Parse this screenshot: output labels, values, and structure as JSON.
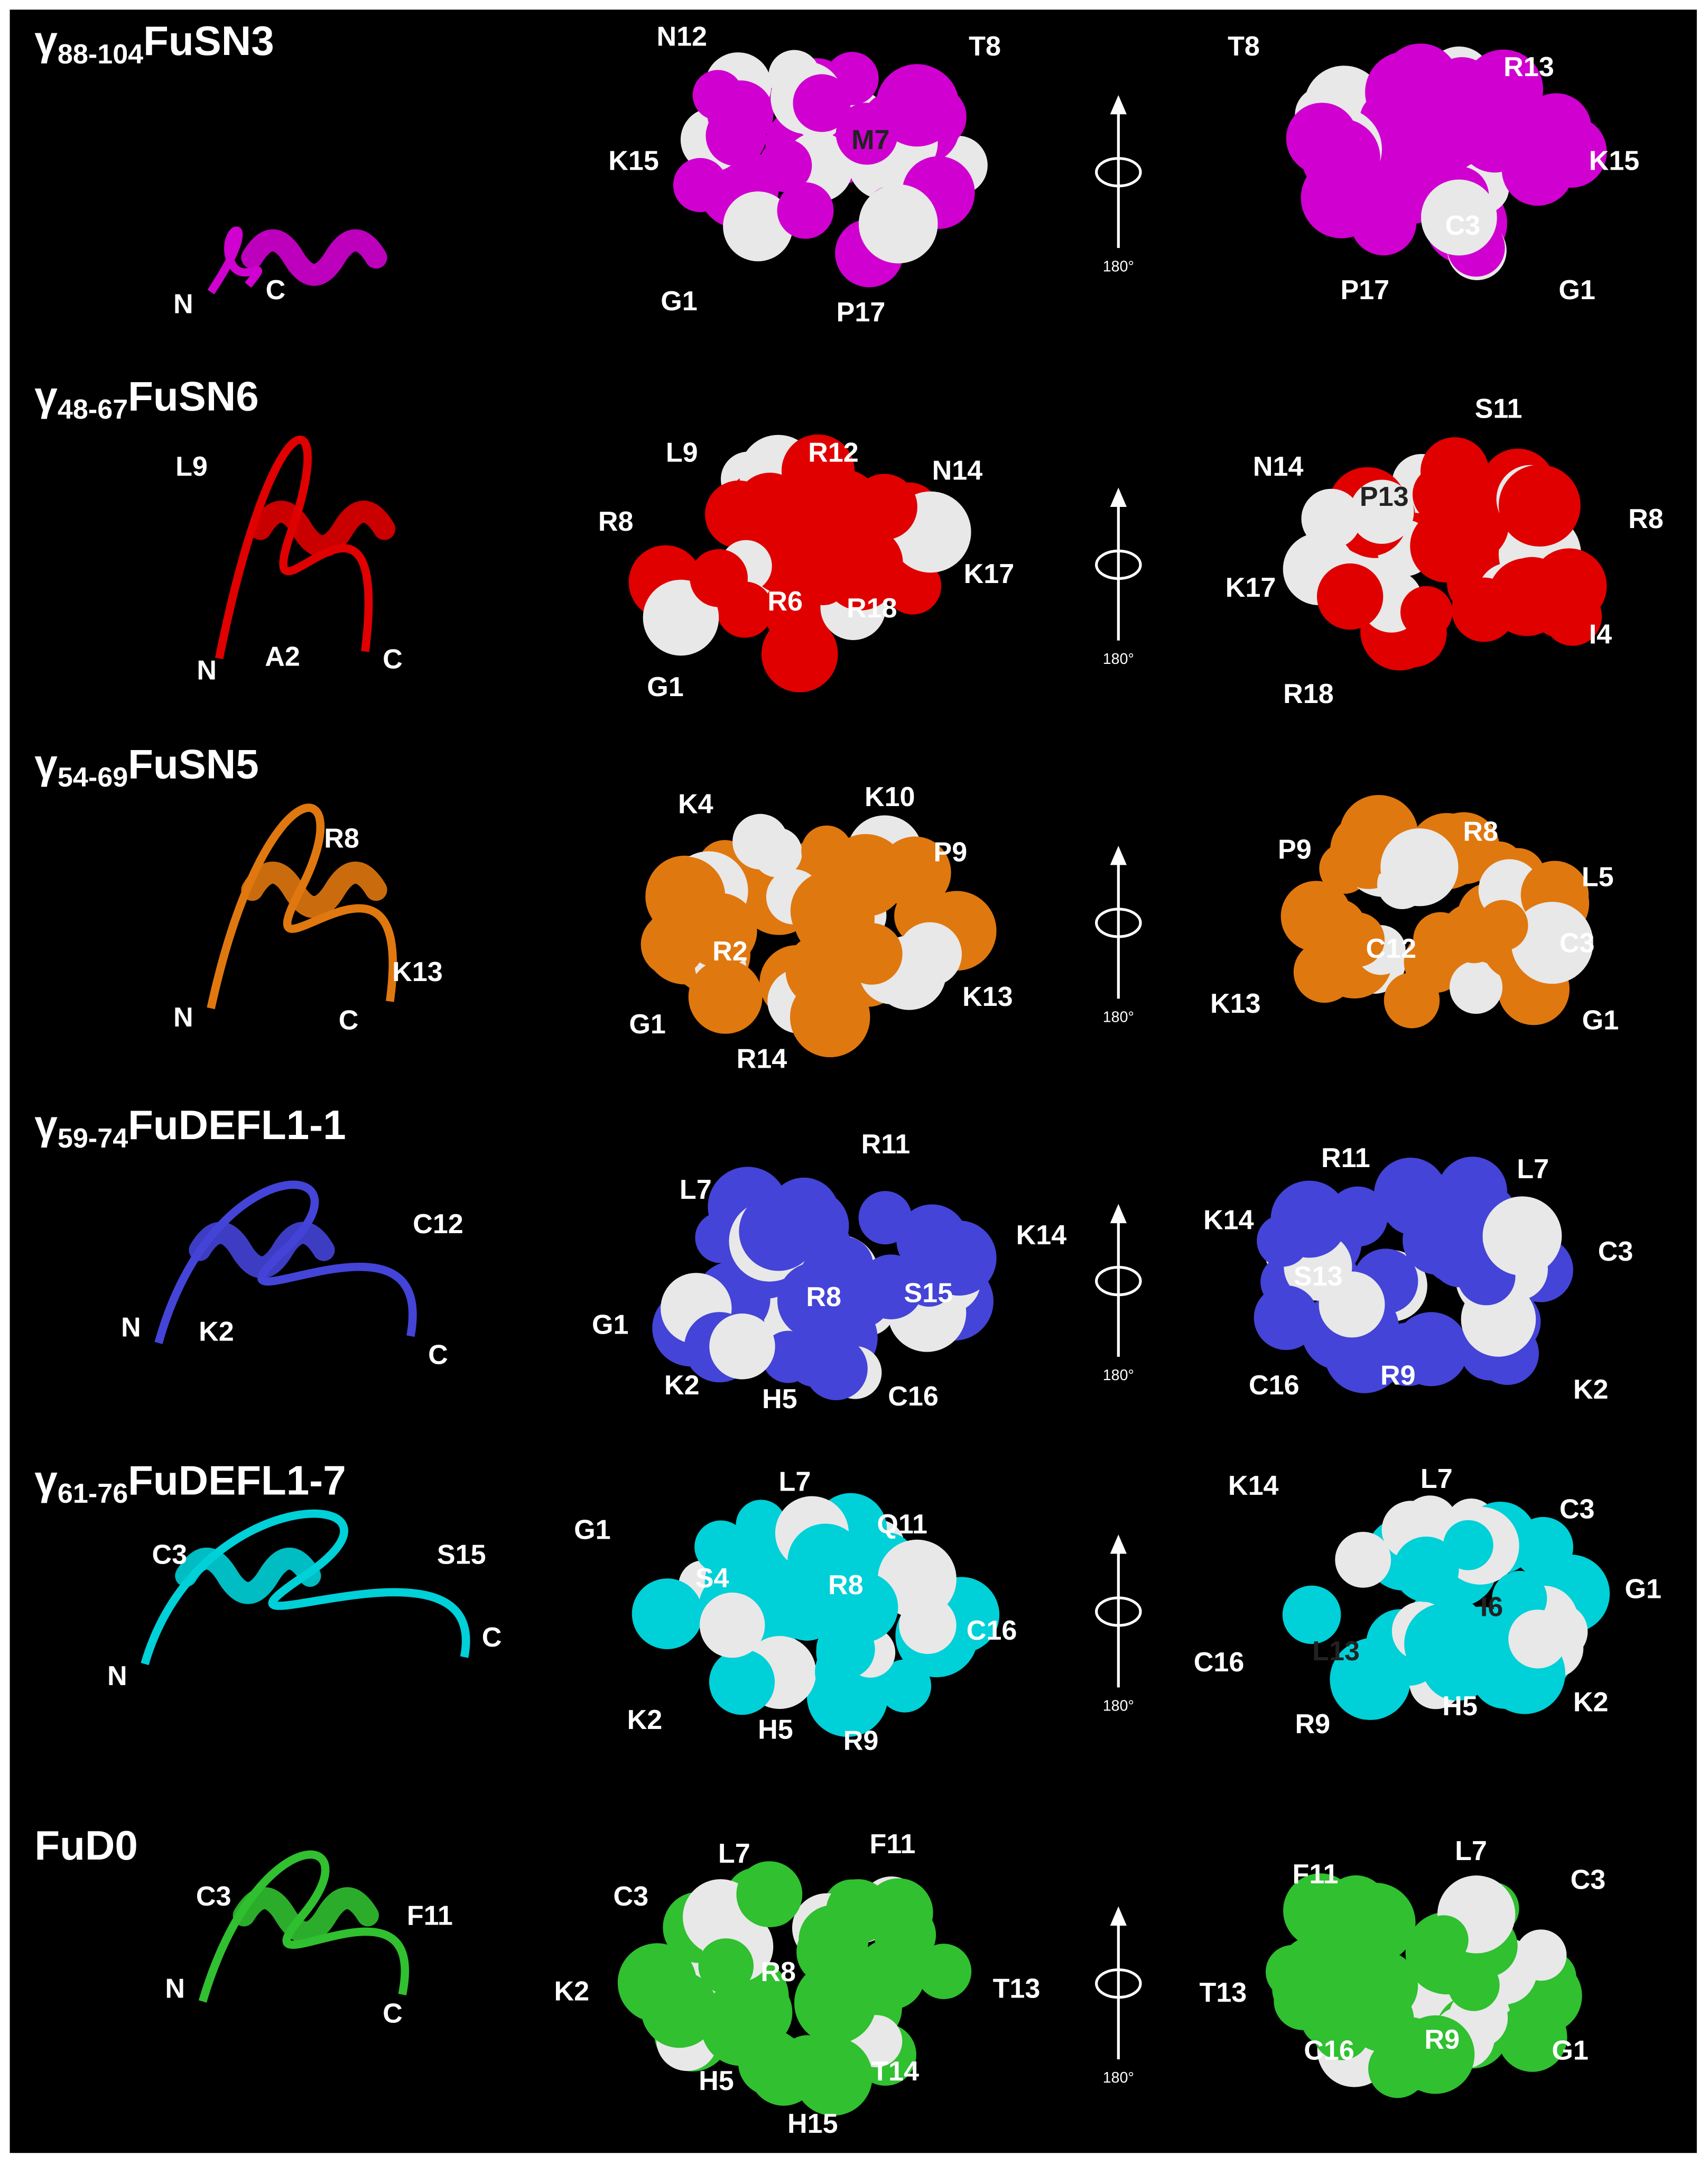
{
  "rows": [
    {
      "title": {
        "greek": "γ",
        "range": "88-104",
        "name": "FuSN3"
      },
      "color": "#d000d0",
      "cartoon": [
        "N",
        "C"
      ],
      "front": [
        "N12",
        "T8",
        "K15",
        "M7",
        "G1",
        "P17"
      ],
      "rotation": "180°",
      "back": [
        "T8",
        "R13",
        "K15",
        "C3",
        "P17",
        "G1"
      ]
    },
    {
      "title": {
        "greek": "γ",
        "range": "48-67",
        "name": "FuSN6"
      },
      "color": "#e00000",
      "cartoon": [
        "L9",
        "N",
        "A2",
        "C"
      ],
      "front": [
        "L9",
        "R12",
        "N14",
        "R8",
        "K17",
        "R6",
        "R18",
        "G1"
      ],
      "rotation": "180°",
      "back": [
        "S11",
        "N14",
        "P13",
        "R8",
        "K17",
        "I4",
        "R18"
      ]
    },
    {
      "title": {
        "greek": "γ",
        "range": "54-69",
        "name": "FuSN5"
      },
      "color": "#e07810",
      "cartoon": [
        "R8",
        "K13",
        "N",
        "C"
      ],
      "front": [
        "K4",
        "K10",
        "P9",
        "R2",
        "K13",
        "G1",
        "R14"
      ],
      "rotation": "180°",
      "back": [
        "R8",
        "P9",
        "L5",
        "C12",
        "C3",
        "K13",
        "G1"
      ]
    },
    {
      "title": {
        "greek": "γ",
        "range": "59-74",
        "name": "FuDEFL1-1"
      },
      "color": "#4444d8",
      "cartoon": [
        "C12",
        "N",
        "K2",
        "C"
      ],
      "front": [
        "R11",
        "L7",
        "K14",
        "G1",
        "R8",
        "S15",
        "K2",
        "H5",
        "C16"
      ],
      "rotation": "180°",
      "back": [
        "R11",
        "L7",
        "K14",
        "C3",
        "S13",
        "C16",
        "R9",
        "K2"
      ]
    },
    {
      "title": {
        "greek": "γ",
        "range": "61-76",
        "name": "FuDEFL1-7"
      },
      "color": "#00d0d8",
      "cartoon": [
        "C3",
        "S15",
        "N",
        "C"
      ],
      "front": [
        "L7",
        "Q11",
        "G1",
        "S4",
        "R8",
        "C16",
        "K2",
        "H5",
        "R9"
      ],
      "rotation": "180°",
      "back": [
        "K14",
        "L7",
        "C3",
        "G1",
        "I6",
        "C16",
        "L13",
        "R9",
        "H5",
        "K2"
      ]
    },
    {
      "title": {
        "name": "FuD0"
      },
      "color": "#30c030",
      "cartoon": [
        "C3",
        "F11",
        "N",
        "C"
      ],
      "front": [
        "L7",
        "F11",
        "C3",
        "K2",
        "R8",
        "T13",
        "H5",
        "T14",
        "H15"
      ],
      "rotation": "180°",
      "back": [
        "F11",
        "L7",
        "C3",
        "T13",
        "C16",
        "R9",
        "G1"
      ]
    }
  ]
}
